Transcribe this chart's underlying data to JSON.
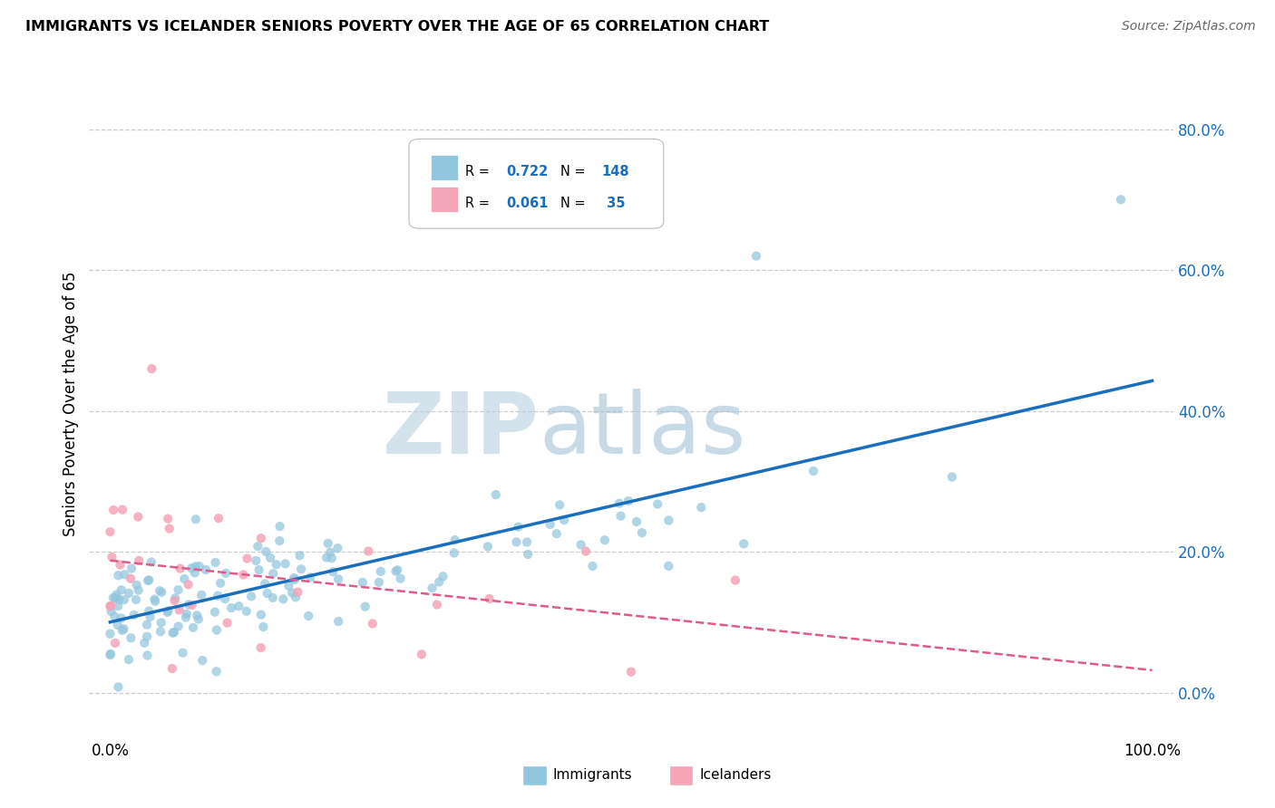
{
  "title": "IMMIGRANTS VS ICELANDER SENIORS POVERTY OVER THE AGE OF 65 CORRELATION CHART",
  "source": "Source: ZipAtlas.com",
  "ylabel": "Seniors Poverty Over the Age of 65",
  "xlim": [
    -0.02,
    1.02
  ],
  "ylim": [
    -0.06,
    0.88
  ],
  "yticks": [
    0.0,
    0.2,
    0.4,
    0.6,
    0.8
  ],
  "ytick_labels": [
    "0.0%",
    "20.0%",
    "40.0%",
    "60.0%",
    "80.0%"
  ],
  "xtick_labels": [
    "0.0%",
    "100.0%"
  ],
  "immigrants_R": 0.722,
  "immigrants_N": 148,
  "icelanders_R": 0.061,
  "icelanders_N": 35,
  "immigrants_color": "#92c5de",
  "icelanders_color": "#f4a5b8",
  "immigrants_line_color": "#1a6fbd",
  "icelanders_line_color": "#e05a8a",
  "R_color": "#1a6fbd",
  "legend_immigrants_label": "Immigrants",
  "legend_icelanders_label": "Icelanders",
  "watermark_zip": "ZIP",
  "watermark_atlas": "atlas",
  "background_color": "#ffffff"
}
